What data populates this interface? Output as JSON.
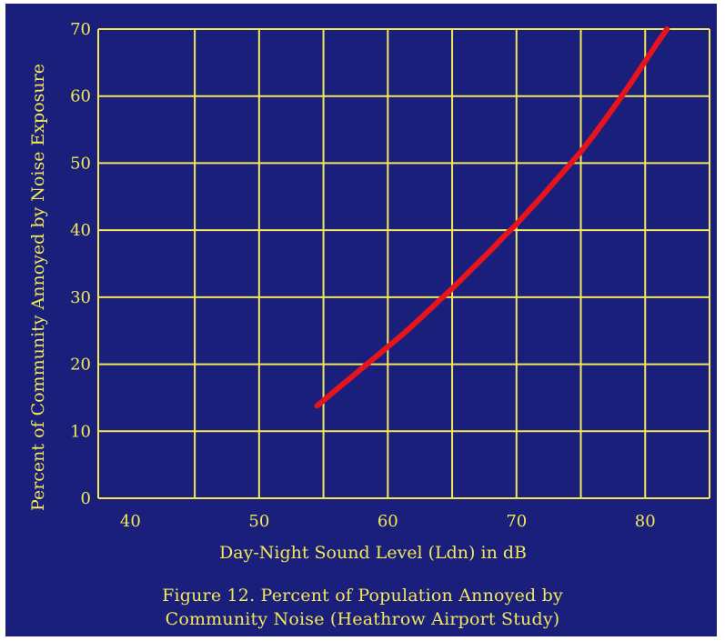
{
  "colors": {
    "background": "#1b1f7c",
    "grid": "#f2e85a",
    "text": "#f2e85a",
    "curve": "#e8141c"
  },
  "chart_data": {
    "type": "line",
    "title": "",
    "xlabel": "Day-Night Sound Level (Ldn) in dB",
    "ylabel": "Percent of Community Annoyed by Noise Exposure",
    "xlim": [
      37.5,
      85
    ],
    "ylim": [
      0,
      70
    ],
    "x_ticks": [
      40,
      50,
      60,
      70,
      80
    ],
    "x_tick_labels": [
      "40",
      "50",
      "60",
      "70",
      "80"
    ],
    "x_gridlines": [
      37.5,
      45,
      50,
      55,
      60,
      65,
      70,
      75,
      80,
      85
    ],
    "y_ticks": [
      0,
      10,
      20,
      30,
      40,
      50,
      60,
      70
    ],
    "y_tick_labels": [
      "0",
      "10",
      "20",
      "30",
      "40",
      "50",
      "60",
      "70"
    ],
    "grid": true,
    "legend": "none",
    "series": [
      {
        "x": [
          54.5,
          55,
          56,
          57,
          58,
          59,
          60,
          61,
          62,
          63,
          64,
          65,
          66,
          67,
          68,
          69,
          70,
          71,
          72,
          73,
          74,
          75,
          76,
          77,
          78,
          79,
          80,
          81,
          81.7
        ],
        "values": [
          13.8,
          14.6,
          16.2,
          17.8,
          19.4,
          21.0,
          22.6,
          24.2,
          25.9,
          27.7,
          29.5,
          31.3,
          33.2,
          35.1,
          37.0,
          39.0,
          40.9,
          43.0,
          45.1,
          47.3,
          49.5,
          51.7,
          54.2,
          56.8,
          59.5,
          62.3,
          65.2,
          68.1,
          70.0
        ]
      }
    ],
    "caption": [
      "Figure 12. Percent of Population Annoyed by",
      "Community Noise (Heathrow Airport Study)"
    ]
  }
}
